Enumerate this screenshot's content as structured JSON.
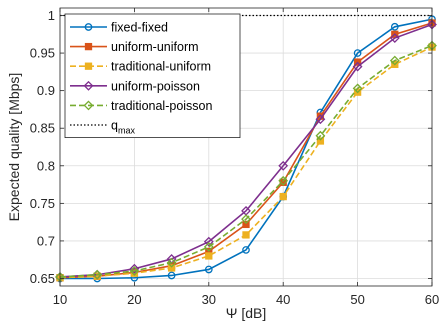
{
  "chart_data": {
    "type": "line",
    "xlabel": "Ψ [dB]",
    "ylabel": "Expected quality [Mbps]",
    "xlim": [
      10,
      60
    ],
    "ylim": [
      0.64,
      1.01
    ],
    "x_ticks": [
      10,
      20,
      30,
      40,
      50,
      60
    ],
    "x_tick_labels": [
      "10",
      "20",
      "30",
      "40",
      "50",
      "60"
    ],
    "y_ticks": [
      0.65,
      0.7,
      0.75,
      0.8,
      0.85,
      0.9,
      0.95,
      1
    ],
    "y_tick_labels": [
      "0.65",
      "0.7",
      "0.75",
      "0.8",
      "0.85",
      "0.9",
      "0.95",
      "1"
    ],
    "grid": true,
    "legend_position": "top-left",
    "x": [
      10,
      15,
      20,
      25,
      30,
      35,
      40,
      45,
      50,
      55,
      60
    ],
    "series": [
      {
        "name": "fixed-fixed",
        "color": "#0072BD",
        "marker": "circle",
        "dash": "solid",
        "values": [
          0.65,
          0.65,
          0.651,
          0.654,
          0.662,
          0.688,
          0.759,
          0.871,
          0.95,
          0.985,
          0.995
        ]
      },
      {
        "name": "uniform-uniform",
        "color": "#D95319",
        "marker": "square",
        "dash": "solid",
        "values": [
          0.651,
          0.653,
          0.658,
          0.667,
          0.686,
          0.722,
          0.778,
          0.866,
          0.938,
          0.975,
          0.99
        ]
      },
      {
        "name": "traditional-uniform",
        "color": "#EDB120",
        "marker": "square",
        "dash": "dashed",
        "values": [
          0.651,
          0.653,
          0.657,
          0.664,
          0.68,
          0.708,
          0.759,
          0.833,
          0.898,
          0.935,
          0.958
        ]
      },
      {
        "name": "uniform-poisson",
        "color": "#7E2F8E",
        "marker": "diamond",
        "dash": "solid",
        "values": [
          0.652,
          0.655,
          0.663,
          0.676,
          0.699,
          0.74,
          0.8,
          0.862,
          0.932,
          0.97,
          0.988
        ]
      },
      {
        "name": "traditional-poisson",
        "color": "#77AC30",
        "marker": "diamond",
        "dash": "dashed",
        "values": [
          0.652,
          0.655,
          0.66,
          0.671,
          0.692,
          0.729,
          0.78,
          0.84,
          0.903,
          0.94,
          0.96
        ]
      },
      {
        "name": "q",
        "name_subscript": "max",
        "color": "#000000",
        "marker": "none",
        "dash": "dotted",
        "values": [
          1,
          1,
          1,
          1,
          1,
          1,
          1,
          1,
          1,
          1,
          1
        ]
      }
    ]
  }
}
